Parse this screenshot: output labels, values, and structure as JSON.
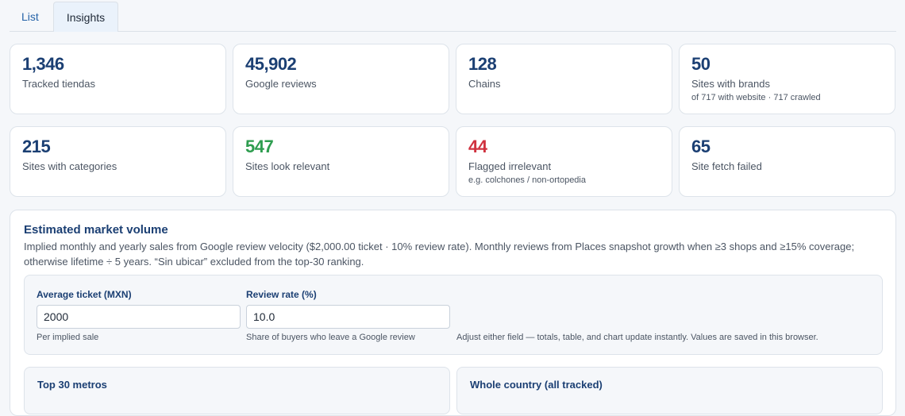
{
  "tabs": [
    {
      "label": "List"
    },
    {
      "label": "Insights"
    }
  ],
  "stats": [
    {
      "value": "1,346",
      "label": "Tracked tiendas",
      "sub": ""
    },
    {
      "value": "45,902",
      "label": "Google reviews",
      "sub": ""
    },
    {
      "value": "128",
      "label": "Chains",
      "sub": ""
    },
    {
      "value": "50",
      "label": "Sites with brands",
      "sub": "of 717 with website · 717 crawled"
    },
    {
      "value": "215",
      "label": "Sites with categories",
      "sub": ""
    },
    {
      "value": "547",
      "label": "Sites look relevant",
      "sub": ""
    },
    {
      "value": "44",
      "label": "Flagged irrelevant",
      "sub": "e.g. colchones / non-ortopedia"
    },
    {
      "value": "65",
      "label": "Site fetch failed",
      "sub": ""
    }
  ],
  "colors": {
    "value": "#1b3f73",
    "relevant": "#2e9d4f",
    "irrelevant": "#d0323f",
    "link": "#2563a8"
  },
  "market": {
    "title": "Estimated market volume",
    "description": "Implied monthly and yearly sales from Google review velocity ($2,000.00 ticket · 10% review rate). Monthly reviews from Places snapshot growth when ≥3 shops and ≥15% coverage; otherwise lifetime ÷ 5 years. “Sin ubicar” excluded from the top-30 ranking.",
    "ticket": {
      "label": "Average ticket (MXN)",
      "value": "2000",
      "hint": "Per implied sale"
    },
    "rate": {
      "label": "Review rate (%)",
      "value": "10.0",
      "hint": "Share of buyers who leave a Google review"
    },
    "note": "Adjust either field — totals, table, and chart update instantly. Values are saved in this browser.",
    "top_title": "Top 30 metros",
    "country_title": "Whole country (all tracked)"
  }
}
